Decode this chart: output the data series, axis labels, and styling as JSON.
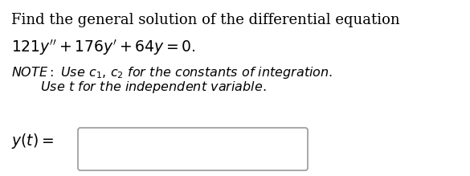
{
  "background_color": "#ffffff",
  "line1": "Find the general solution of the differential equation",
  "line2": "$121y'' + 176y' + 64y = 0.$",
  "note_line1": "$\\it{NOTE: Use\\ c_1,\\ c_2\\ for\\ the\\ constants\\ of\\ integration.}$",
  "note_line2": "$\\it{Use\\ t\\ for\\ the\\ independent\\ variable.}$",
  "answer_label": "$y(t) =$",
  "font_size_main": 13.0,
  "font_size_eq": 13.5,
  "font_size_note": 11.5,
  "font_size_answer": 13.5,
  "text_color": "#000000",
  "box_edge_color": "#999999"
}
